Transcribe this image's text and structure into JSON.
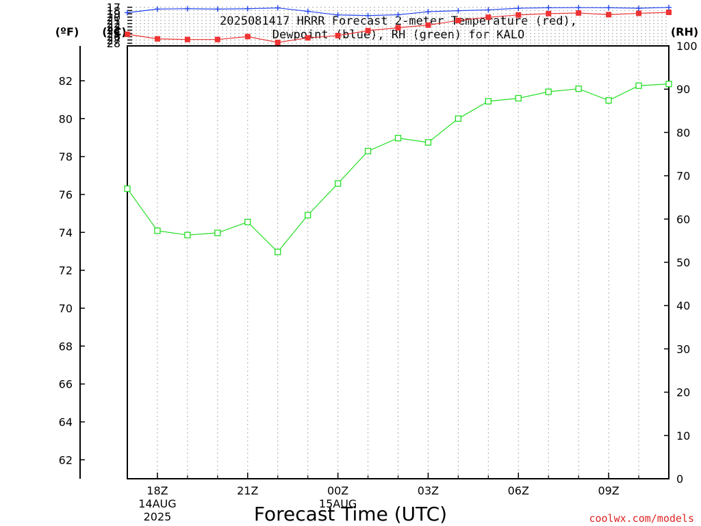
{
  "chart_data": {
    "type": "line",
    "title": "2025081417 HRRR Forecast 2-meter Temperature (red),",
    "subtitle": "Dewpoint (blue), RH (green) for KALO",
    "xlabel": "Forecast Time (UTC)",
    "credit": "coolwx.com/models",
    "units": {
      "fahrenheit": "(ºF)",
      "celsius": "(ºC)",
      "rh": "(RH)"
    },
    "x": [
      17,
      18,
      19,
      20,
      21,
      22,
      23,
      24,
      25,
      26,
      27,
      28,
      29,
      30,
      31,
      32,
      33,
      34,
      35
    ],
    "xlim": [
      17,
      35
    ],
    "ylim_celsius": [
      161,
      28.8
    ],
    "ylim_rh": [
      0,
      100
    ],
    "ylim_fahrenheit": [
      61.0,
      83.84
    ],
    "x_ticks": [
      {
        "x": 18,
        "lines": [
          "18Z",
          "14AUG",
          "2025"
        ]
      },
      {
        "x": 21,
        "lines": [
          "21Z"
        ]
      },
      {
        "x": 24,
        "lines": [
          "00Z",
          "15AUG"
        ]
      },
      {
        "x": 27,
        "lines": [
          "03Z"
        ]
      },
      {
        "x": 30,
        "lines": [
          "06Z"
        ]
      },
      {
        "x": 33,
        "lines": [
          "09Z"
        ]
      }
    ],
    "celsius_ticks": [
      "17",
      "18",
      "19",
      "20",
      "21",
      "22",
      "23",
      "24",
      "25",
      "26",
      "27",
      "28"
    ],
    "fahrenheit_ticks": [
      "62",
      "64",
      "66",
      "68",
      "70",
      "72",
      "74",
      "76",
      "78",
      "80",
      "82"
    ],
    "rh_ticks": [
      "0",
      "10",
      "20",
      "30",
      "40",
      "50",
      "60",
      "70",
      "80",
      "90",
      "100"
    ],
    "grid": true,
    "series": [
      {
        "name": "Temperature (red)",
        "axis": "celsius",
        "color": "#ee3333",
        "marker": "filled-square",
        "values": [
          25.25,
          26.65,
          26.85,
          26.85,
          25.95,
          27.75,
          26.35,
          25.65,
          24.15,
          23.25,
          22.45,
          21.05,
          20.05,
          19.35,
          18.95,
          18.75,
          19.25,
          18.85,
          18.55
        ]
      },
      {
        "name": "Dewpoint (blue)",
        "axis": "celsius",
        "color": "#2244ee",
        "marker": "plus",
        "values": [
          18.65,
          17.55,
          17.45,
          17.55,
          17.45,
          17.2,
          18.25,
          19.35,
          19.55,
          19.3,
          18.35,
          18.05,
          17.8,
          17.3,
          17.15,
          17.1,
          17.15,
          17.3,
          17.05
        ]
      },
      {
        "name": "RH (green)",
        "axis": "rh",
        "color": "#22dd22",
        "marker": "open-square",
        "values": [
          67,
          57.3,
          56.3,
          56.8,
          59.3,
          52.4,
          60.9,
          68.2,
          75.7,
          78.7,
          77.7,
          83.2,
          87.2,
          87.9,
          89.4,
          90.1,
          87.4,
          90.8,
          91.2
        ]
      }
    ]
  }
}
